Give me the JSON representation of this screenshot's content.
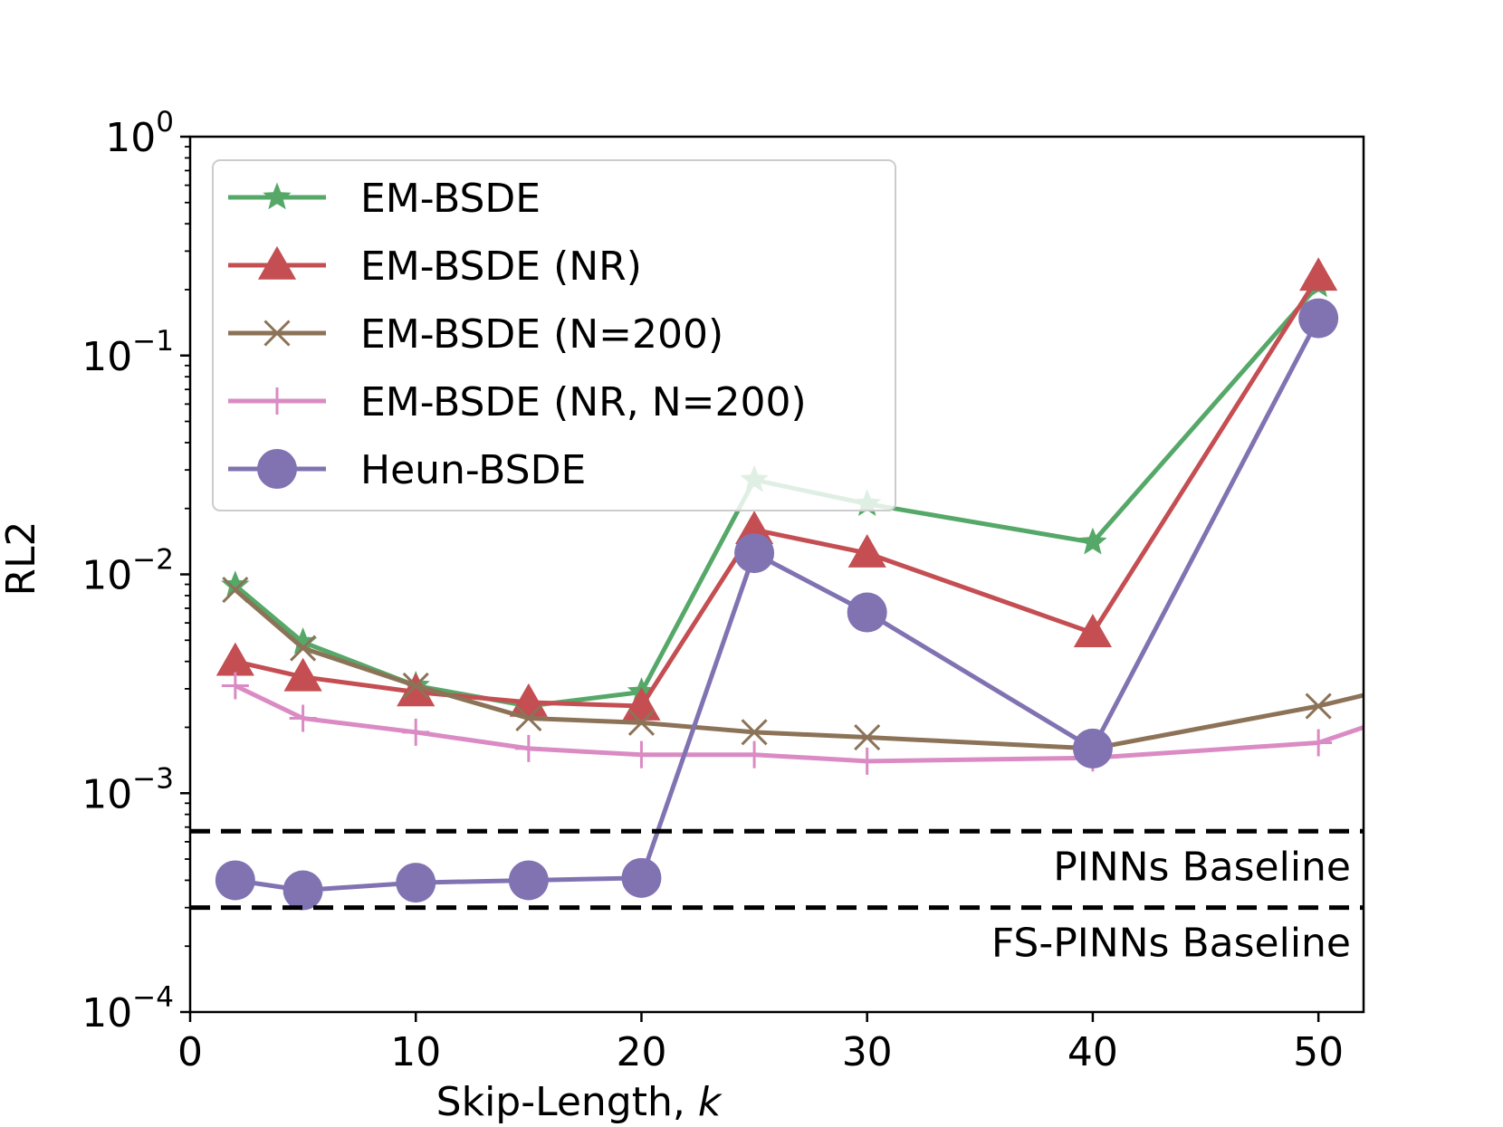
{
  "chart_data": {
    "type": "line",
    "xlabel": "Skip-Length, ",
    "xlabel_var": "k",
    "ylabel": "RL2",
    "x_scale": "linear",
    "y_scale": "log",
    "xlim": [
      0,
      52
    ],
    "ylim": [
      0.0001,
      1
    ],
    "x_ticks": [
      0,
      10,
      20,
      30,
      40,
      50
    ],
    "y_ticks": [
      {
        "value": 1,
        "base": "10",
        "exp": "0"
      },
      {
        "value": 0.1,
        "base": "10",
        "exp": "−1"
      },
      {
        "value": 0.01,
        "base": "10",
        "exp": "−2"
      },
      {
        "value": 0.001,
        "base": "10",
        "exp": "−3"
      },
      {
        "value": 0.0001,
        "base": "10",
        "exp": "−4"
      }
    ],
    "grid": false,
    "legend_position": "top-left",
    "series": [
      {
        "name": "EM-BSDE",
        "color": "#55a868",
        "marker": "star",
        "x": [
          2,
          5,
          10,
          15,
          20,
          25,
          30,
          40,
          50
        ],
        "y": [
          0.0089,
          0.0049,
          0.0031,
          0.0025,
          0.0029,
          0.027,
          0.021,
          0.014,
          0.21
        ]
      },
      {
        "name": "EM-BSDE (NR)",
        "color": "#c44e52",
        "marker": "triangle",
        "x": [
          2,
          5,
          10,
          15,
          20,
          25,
          30,
          40,
          50
        ],
        "y": [
          0.004,
          0.0034,
          0.0029,
          0.0026,
          0.0025,
          0.016,
          0.0125,
          0.0054,
          0.23
        ]
      },
      {
        "name": "EM-BSDE (N=200)",
        "color": "#8c7358",
        "marker": "x",
        "x": [
          2,
          5,
          10,
          15,
          20,
          25,
          30,
          40,
          50,
          52
        ],
        "y": [
          0.0085,
          0.0046,
          0.0031,
          0.0022,
          0.0021,
          0.0019,
          0.0018,
          0.0016,
          0.0025,
          0.0028
        ],
        "marker_count": 9
      },
      {
        "name": "EM-BSDE (NR, N=200)",
        "color": "#da8bc3",
        "marker": "plus",
        "x": [
          2,
          5,
          10,
          15,
          20,
          25,
          30,
          40,
          50,
          52
        ],
        "y": [
          0.0031,
          0.0022,
          0.0019,
          0.0016,
          0.0015,
          0.0015,
          0.0014,
          0.00145,
          0.0017,
          0.002
        ],
        "marker_count": 9
      },
      {
        "name": "Heun-BSDE",
        "color": "#8172b2",
        "marker": "circle",
        "x": [
          2,
          5,
          10,
          15,
          20,
          25,
          30,
          40,
          50
        ],
        "y": [
          0.0004,
          0.00036,
          0.00039,
          0.0004,
          0.00041,
          0.0125,
          0.0067,
          0.0016,
          0.148
        ]
      }
    ],
    "baselines": [
      {
        "label": "PINNs Baseline",
        "y": 0.00067
      },
      {
        "label": "FS-PINNs Baseline",
        "y": 0.0003
      }
    ]
  }
}
